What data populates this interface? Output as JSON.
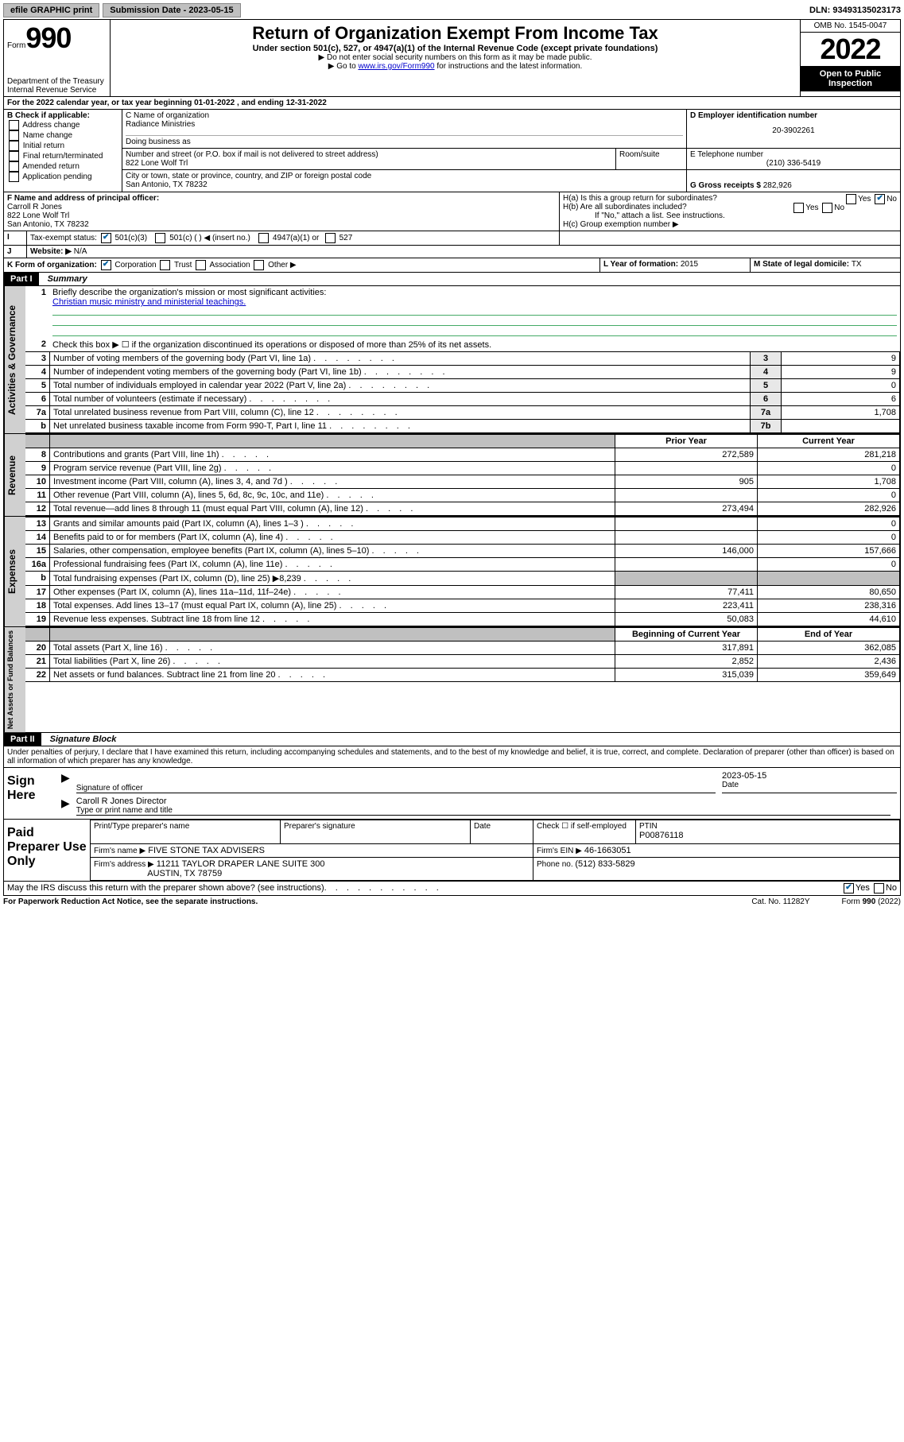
{
  "top_bar": {
    "efile_btn": "efile GRAPHIC print",
    "sub_label": "Submission Date - 2023-05-15",
    "dln_label": "DLN: 93493135023173"
  },
  "header": {
    "form_word": "Form",
    "form_number": "990",
    "dept": "Department of the Treasury",
    "irs": "Internal Revenue Service",
    "title": "Return of Organization Exempt From Income Tax",
    "subtitle": "Under section 501(c), 527, or 4947(a)(1) of the Internal Revenue Code (except private foundations)",
    "warn1": "▶ Do not enter social security numbers on this form as it may be made public.",
    "warn2_pre": "▶ Go to ",
    "warn2_link": "www.irs.gov/Form990",
    "warn2_post": " for instructions and the latest information.",
    "omb": "OMB No. 1545-0047",
    "year": "2022",
    "open": "Open to Public Inspection"
  },
  "line_a": "For the 2022 calendar year, or tax year beginning 01-01-2022    , and ending 12-31-2022",
  "box_b": {
    "label": "B Check if applicable:",
    "opts": [
      "Address change",
      "Name change",
      "Initial return",
      "Final return/terminated",
      "Amended return",
      "Application pending"
    ]
  },
  "box_c": {
    "name_label": "C Name of organization",
    "name": "Radiance Ministries",
    "dba_label": "Doing business as",
    "addr_label": "Number and street (or P.O. box if mail is not delivered to street address)",
    "room_label": "Room/suite",
    "addr": "822 Lone Wolf Trl",
    "city_label": "City or town, state or province, country, and ZIP or foreign postal code",
    "city": "San Antonio, TX  78232"
  },
  "box_d": {
    "label": "D Employer identification number",
    "value": "20-3902261"
  },
  "box_e": {
    "label": "E Telephone number",
    "value": "(210) 336-5419"
  },
  "box_g": {
    "label": "G Gross receipts $ ",
    "value": "282,926"
  },
  "box_f": {
    "label": "F Name and address of principal officer:",
    "name": "Carroll R Jones",
    "addr1": "822 Lone Wolf Trl",
    "addr2": "San Antonio, TX  78232"
  },
  "box_h": {
    "ha": "H(a)  Is this a group return for subordinates?",
    "hb": "H(b)  Are all subordinates included?",
    "hnote": "If \"No,\" attach a list. See instructions.",
    "hc": "H(c)  Group exemption number ▶",
    "yes": "Yes",
    "no": "No"
  },
  "box_i": {
    "label": "Tax-exempt status:",
    "c3": "501(c)(3)",
    "c": "501(c) (   ) ◀ (insert no.)",
    "a1": "4947(a)(1) or",
    "s527": "527"
  },
  "box_j": {
    "label": "Website: ▶",
    "value": "N/A"
  },
  "box_k": {
    "label": "K Form of organization:",
    "corp": "Corporation",
    "trust": "Trust",
    "assoc": "Association",
    "other": "Other ▶"
  },
  "box_l": {
    "label": "L Year of formation: ",
    "value": "2015"
  },
  "box_m": {
    "label": "M State of legal domicile: ",
    "value": "TX"
  },
  "part1": {
    "hdr": "Part I",
    "title": "Summary"
  },
  "summary": {
    "q1": "Briefly describe the organization's mission or most significant activities:",
    "mission": "Christian music ministry and ministerial teachings.",
    "q2": "Check this box ▶ ☐  if the organization discontinued its operations or disposed of more than 25% of its net assets.",
    "rows": [
      {
        "n": "3",
        "label": "Number of voting members of the governing body (Part VI, line 1a)",
        "box": "3",
        "val": "9"
      },
      {
        "n": "4",
        "label": "Number of independent voting members of the governing body (Part VI, line 1b)",
        "box": "4",
        "val": "9"
      },
      {
        "n": "5",
        "label": "Total number of individuals employed in calendar year 2022 (Part V, line 2a)",
        "box": "5",
        "val": "0"
      },
      {
        "n": "6",
        "label": "Total number of volunteers (estimate if necessary)",
        "box": "6",
        "val": "6"
      },
      {
        "n": "7a",
        "label": "Total unrelated business revenue from Part VIII, column (C), line 12",
        "box": "7a",
        "val": "1,708"
      },
      {
        "n": "b",
        "label": "Net unrelated business taxable income from Form 990-T, Part I, line 11",
        "box": "7b",
        "val": ""
      }
    ],
    "col_prior": "Prior Year",
    "col_curr": "Current Year",
    "rev_rows": [
      {
        "n": "8",
        "label": "Contributions and grants (Part VIII, line 1h)",
        "p": "272,589",
        "c": "281,218"
      },
      {
        "n": "9",
        "label": "Program service revenue (Part VIII, line 2g)",
        "p": "",
        "c": "0"
      },
      {
        "n": "10",
        "label": "Investment income (Part VIII, column (A), lines 3, 4, and 7d )",
        "p": "905",
        "c": "1,708"
      },
      {
        "n": "11",
        "label": "Other revenue (Part VIII, column (A), lines 5, 6d, 8c, 9c, 10c, and 11e)",
        "p": "",
        "c": "0"
      },
      {
        "n": "12",
        "label": "Total revenue—add lines 8 through 11 (must equal Part VIII, column (A), line 12)",
        "p": "273,494",
        "c": "282,926"
      }
    ],
    "exp_rows": [
      {
        "n": "13",
        "label": "Grants and similar amounts paid (Part IX, column (A), lines 1–3 )",
        "p": "",
        "c": "0"
      },
      {
        "n": "14",
        "label": "Benefits paid to or for members (Part IX, column (A), line 4)",
        "p": "",
        "c": "0"
      },
      {
        "n": "15",
        "label": "Salaries, other compensation, employee benefits (Part IX, column (A), lines 5–10)",
        "p": "146,000",
        "c": "157,666"
      },
      {
        "n": "16a",
        "label": "Professional fundraising fees (Part IX, column (A), line 11e)",
        "p": "",
        "c": "0"
      },
      {
        "n": "b",
        "label": "Total fundraising expenses (Part IX, column (D), line 25) ▶8,239",
        "p": "SHADE",
        "c": "SHADE"
      },
      {
        "n": "17",
        "label": "Other expenses (Part IX, column (A), lines 11a–11d, 11f–24e)",
        "p": "77,411",
        "c": "80,650"
      },
      {
        "n": "18",
        "label": "Total expenses. Add lines 13–17 (must equal Part IX, column (A), line 25)",
        "p": "223,411",
        "c": "238,316"
      },
      {
        "n": "19",
        "label": "Revenue less expenses. Subtract line 18 from line 12",
        "p": "50,083",
        "c": "44,610"
      }
    ],
    "col_beg": "Beginning of Current Year",
    "col_end": "End of Year",
    "net_rows": [
      {
        "n": "20",
        "label": "Total assets (Part X, line 16)",
        "p": "317,891",
        "c": "362,085"
      },
      {
        "n": "21",
        "label": "Total liabilities (Part X, line 26)",
        "p": "2,852",
        "c": "2,436"
      },
      {
        "n": "22",
        "label": "Net assets or fund balances. Subtract line 21 from line 20",
        "p": "315,039",
        "c": "359,649"
      }
    ]
  },
  "vert_labels": {
    "gov": "Activities & Governance",
    "rev": "Revenue",
    "exp": "Expenses",
    "net": "Net Assets or Fund Balances"
  },
  "part2": {
    "hdr": "Part II",
    "title": "Signature Block"
  },
  "sig": {
    "penalty": "Under penalties of perjury, I declare that I have examined this return, including accompanying schedules and statements, and to the best of my knowledge and belief, it is true, correct, and complete. Declaration of preparer (other than officer) is based on all information of which preparer has any knowledge.",
    "sign_here": "Sign Here",
    "sig_officer": "Signature of officer",
    "date": "Date",
    "date_val": "2023-05-15",
    "name_title": "Caroll R Jones  Director",
    "type_label": "Type or print name and title",
    "paid": "Paid Preparer Use Only",
    "prep_name_label": "Print/Type preparer's name",
    "prep_sig_label": "Preparer's signature",
    "check_self": "Check ☐ if self-employed",
    "ptin_label": "PTIN",
    "ptin": "P00876118",
    "firm_name_label": "Firm's name     ▶",
    "firm_name": "FIVE STONE TAX ADVISERS",
    "firm_ein_label": "Firm's EIN ▶",
    "firm_ein": "46-1663051",
    "firm_addr_label": "Firm's address ▶",
    "firm_addr1": "11211 TAYLOR DRAPER LANE SUITE 300",
    "firm_addr2": "AUSTIN, TX  78759",
    "phone_label": "Phone no. ",
    "phone": "(512) 833-5829",
    "may_irs": "May the IRS discuss this return with the preparer shown above? (see instructions)",
    "yes": "Yes",
    "no": "No"
  },
  "footer": {
    "pra": "For Paperwork Reduction Act Notice, see the separate instructions.",
    "cat": "Cat. No. 11282Y",
    "form": "Form 990 (2022)"
  }
}
